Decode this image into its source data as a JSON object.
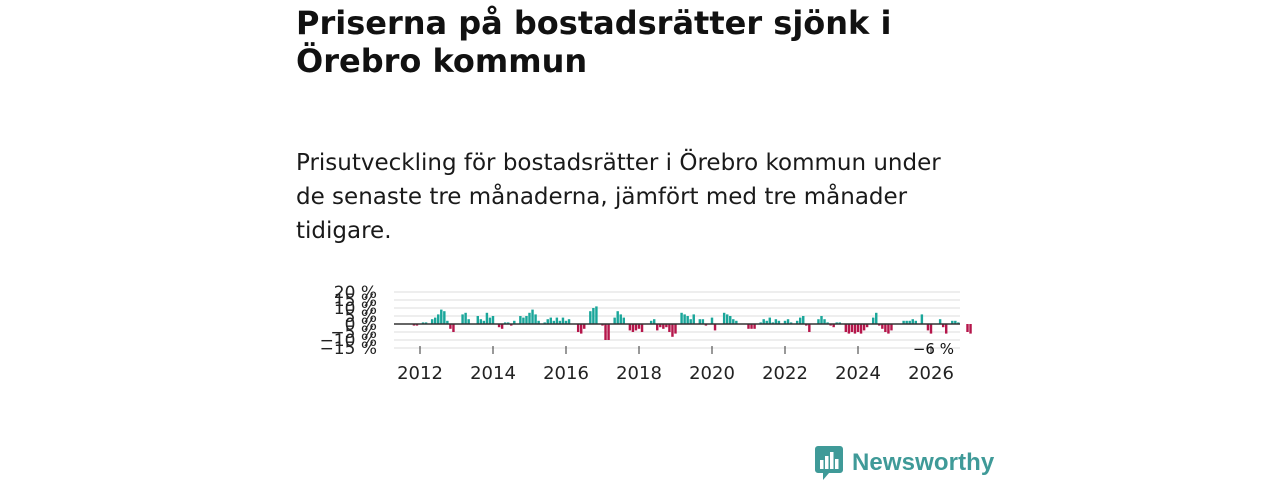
{
  "header": {
    "title": "Priserna på bostadsrätter sjönk i Örebro kommun",
    "subtitle": "Prisutveckling för bostadsrätter i Örebro kommun under de senaste tre månaderna, jämfört med tre månader tidigare."
  },
  "brand": {
    "name": "Newsworthy",
    "color": "#3f9a98"
  },
  "chart_data": {
    "type": "bar",
    "title": "Priserna på bostadsrätter sjönk i Örebro kommun",
    "xlabel": "",
    "ylabel": "",
    "y_ticks": [
      {
        "value": 20,
        "label": "20 %"
      },
      {
        "value": 15,
        "label": "15 %"
      },
      {
        "value": 10,
        "label": "10 %"
      },
      {
        "value": 5,
        "label": "5 %"
      },
      {
        "value": 0,
        "label": "0 %"
      },
      {
        "value": -5,
        "label": "−5 %"
      },
      {
        "value": -10,
        "label": "−10 %"
      },
      {
        "value": -15,
        "label": "−15 %"
      }
    ],
    "x_ticks": [
      "2012",
      "2014",
      "2016",
      "2018",
      "2020",
      "2022",
      "2024",
      "2026"
    ],
    "ylim": [
      -15,
      20
    ],
    "x_start": "2011-07",
    "grid": true,
    "colors": {
      "positive": "#1aa69a",
      "negative": "#b5164b",
      "grid": "#dddddd",
      "zero": "#333333"
    },
    "last_value_label": "−6 %",
    "series": [
      {
        "values": [
          0,
          0,
          0,
          0,
          -1,
          -1,
          0,
          1,
          1,
          0,
          3,
          4,
          6,
          9,
          8,
          2,
          -3,
          -5,
          0,
          0,
          6,
          7,
          3,
          0,
          0,
          5,
          3,
          2,
          7,
          4,
          5,
          0,
          -2,
          -3,
          1,
          1,
          -1,
          2,
          0,
          5,
          4,
          5,
          7,
          9,
          6,
          2,
          0,
          1,
          3,
          4,
          2,
          4,
          2,
          4,
          2,
          3,
          0,
          0,
          -5,
          -6,
          -3,
          0,
          8,
          10,
          11,
          0,
          -1,
          -10,
          -10,
          0,
          4,
          8,
          6,
          4,
          0,
          -4,
          -5,
          -4,
          -3,
          -5,
          0,
          0,
          2,
          3,
          -4,
          -2,
          -3,
          -2,
          -5,
          -8,
          -6,
          0,
          7,
          6,
          5,
          3,
          6,
          0,
          3,
          3,
          -1,
          0,
          4,
          -4,
          0,
          0,
          7,
          6,
          5,
          3,
          2,
          0,
          0,
          0,
          -3,
          -3,
          -3,
          0,
          1,
          3,
          2,
          4,
          1,
          3,
          2,
          0,
          2,
          3,
          1,
          0,
          2,
          4,
          5,
          -1,
          -5,
          0,
          0,
          3,
          5,
          3,
          1,
          -1,
          -2,
          1,
          1,
          0,
          -5,
          -6,
          -5,
          -6,
          -5,
          -6,
          -4,
          -2,
          0,
          4,
          7,
          -1,
          -3,
          -5,
          -6,
          -4,
          0,
          0,
          0,
          2,
          2,
          2,
          3,
          2,
          0,
          6,
          0,
          -4,
          -6,
          0,
          0,
          3,
          -2,
          -6,
          0,
          2,
          2,
          1,
          0,
          0,
          -5,
          -6
        ]
      }
    ]
  }
}
